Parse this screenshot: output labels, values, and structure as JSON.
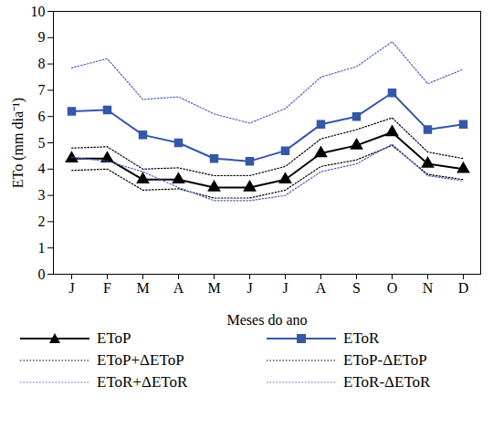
{
  "chart_data": {
    "type": "line",
    "x_label": "Meses do ano",
    "y_label": "ETo (mm dia⁻¹)",
    "categories": [
      "J",
      "F",
      "M",
      "A",
      "M",
      "J",
      "J",
      "A",
      "S",
      "O",
      "N",
      "D"
    ],
    "ylim": [
      0,
      10
    ],
    "yticks": [
      0,
      1,
      2,
      3,
      4,
      5,
      6,
      7,
      8,
      9,
      10
    ],
    "grid": false,
    "legend": "bottom",
    "series": [
      {
        "name": "EToP",
        "color": "#000000",
        "marker": "triangle",
        "line_style": "solid",
        "values": [
          4.4,
          4.4,
          3.6,
          3.6,
          3.3,
          3.3,
          3.6,
          4.6,
          4.9,
          5.4,
          4.2,
          4.0
        ]
      },
      {
        "name": "EToR",
        "color": "#3557a8",
        "marker": "square",
        "line_style": "solid",
        "values": [
          6.2,
          6.25,
          5.3,
          5.0,
          4.4,
          4.3,
          4.7,
          5.7,
          6.0,
          6.9,
          5.5,
          5.7
        ]
      },
      {
        "name": "EToP+ΔEToP",
        "color": "#000000",
        "line_style": "dotted",
        "values": [
          4.8,
          4.85,
          4.0,
          4.05,
          3.75,
          3.75,
          4.1,
          5.15,
          5.5,
          5.95,
          4.65,
          4.4
        ]
      },
      {
        "name": "EToP-ΔEToP",
        "color": "#000000",
        "line_style": "dotted",
        "values": [
          3.95,
          4.0,
          3.2,
          3.25,
          2.9,
          2.9,
          3.2,
          4.1,
          4.35,
          4.9,
          3.8,
          3.6
        ]
      },
      {
        "name": "EToR+ΔEToR",
        "color": "#4a5fc1",
        "line_style": "dotted",
        "values": [
          7.85,
          8.2,
          6.65,
          6.75,
          6.1,
          5.75,
          6.3,
          7.5,
          7.9,
          8.85,
          7.25,
          7.8
        ]
      },
      {
        "name": "EToR-ΔEToR",
        "color": "#4a5fc1",
        "line_style": "dotted",
        "values": [
          4.45,
          4.3,
          3.9,
          3.3,
          2.8,
          2.8,
          3.0,
          3.9,
          4.2,
          4.95,
          3.75,
          3.55
        ]
      }
    ]
  }
}
